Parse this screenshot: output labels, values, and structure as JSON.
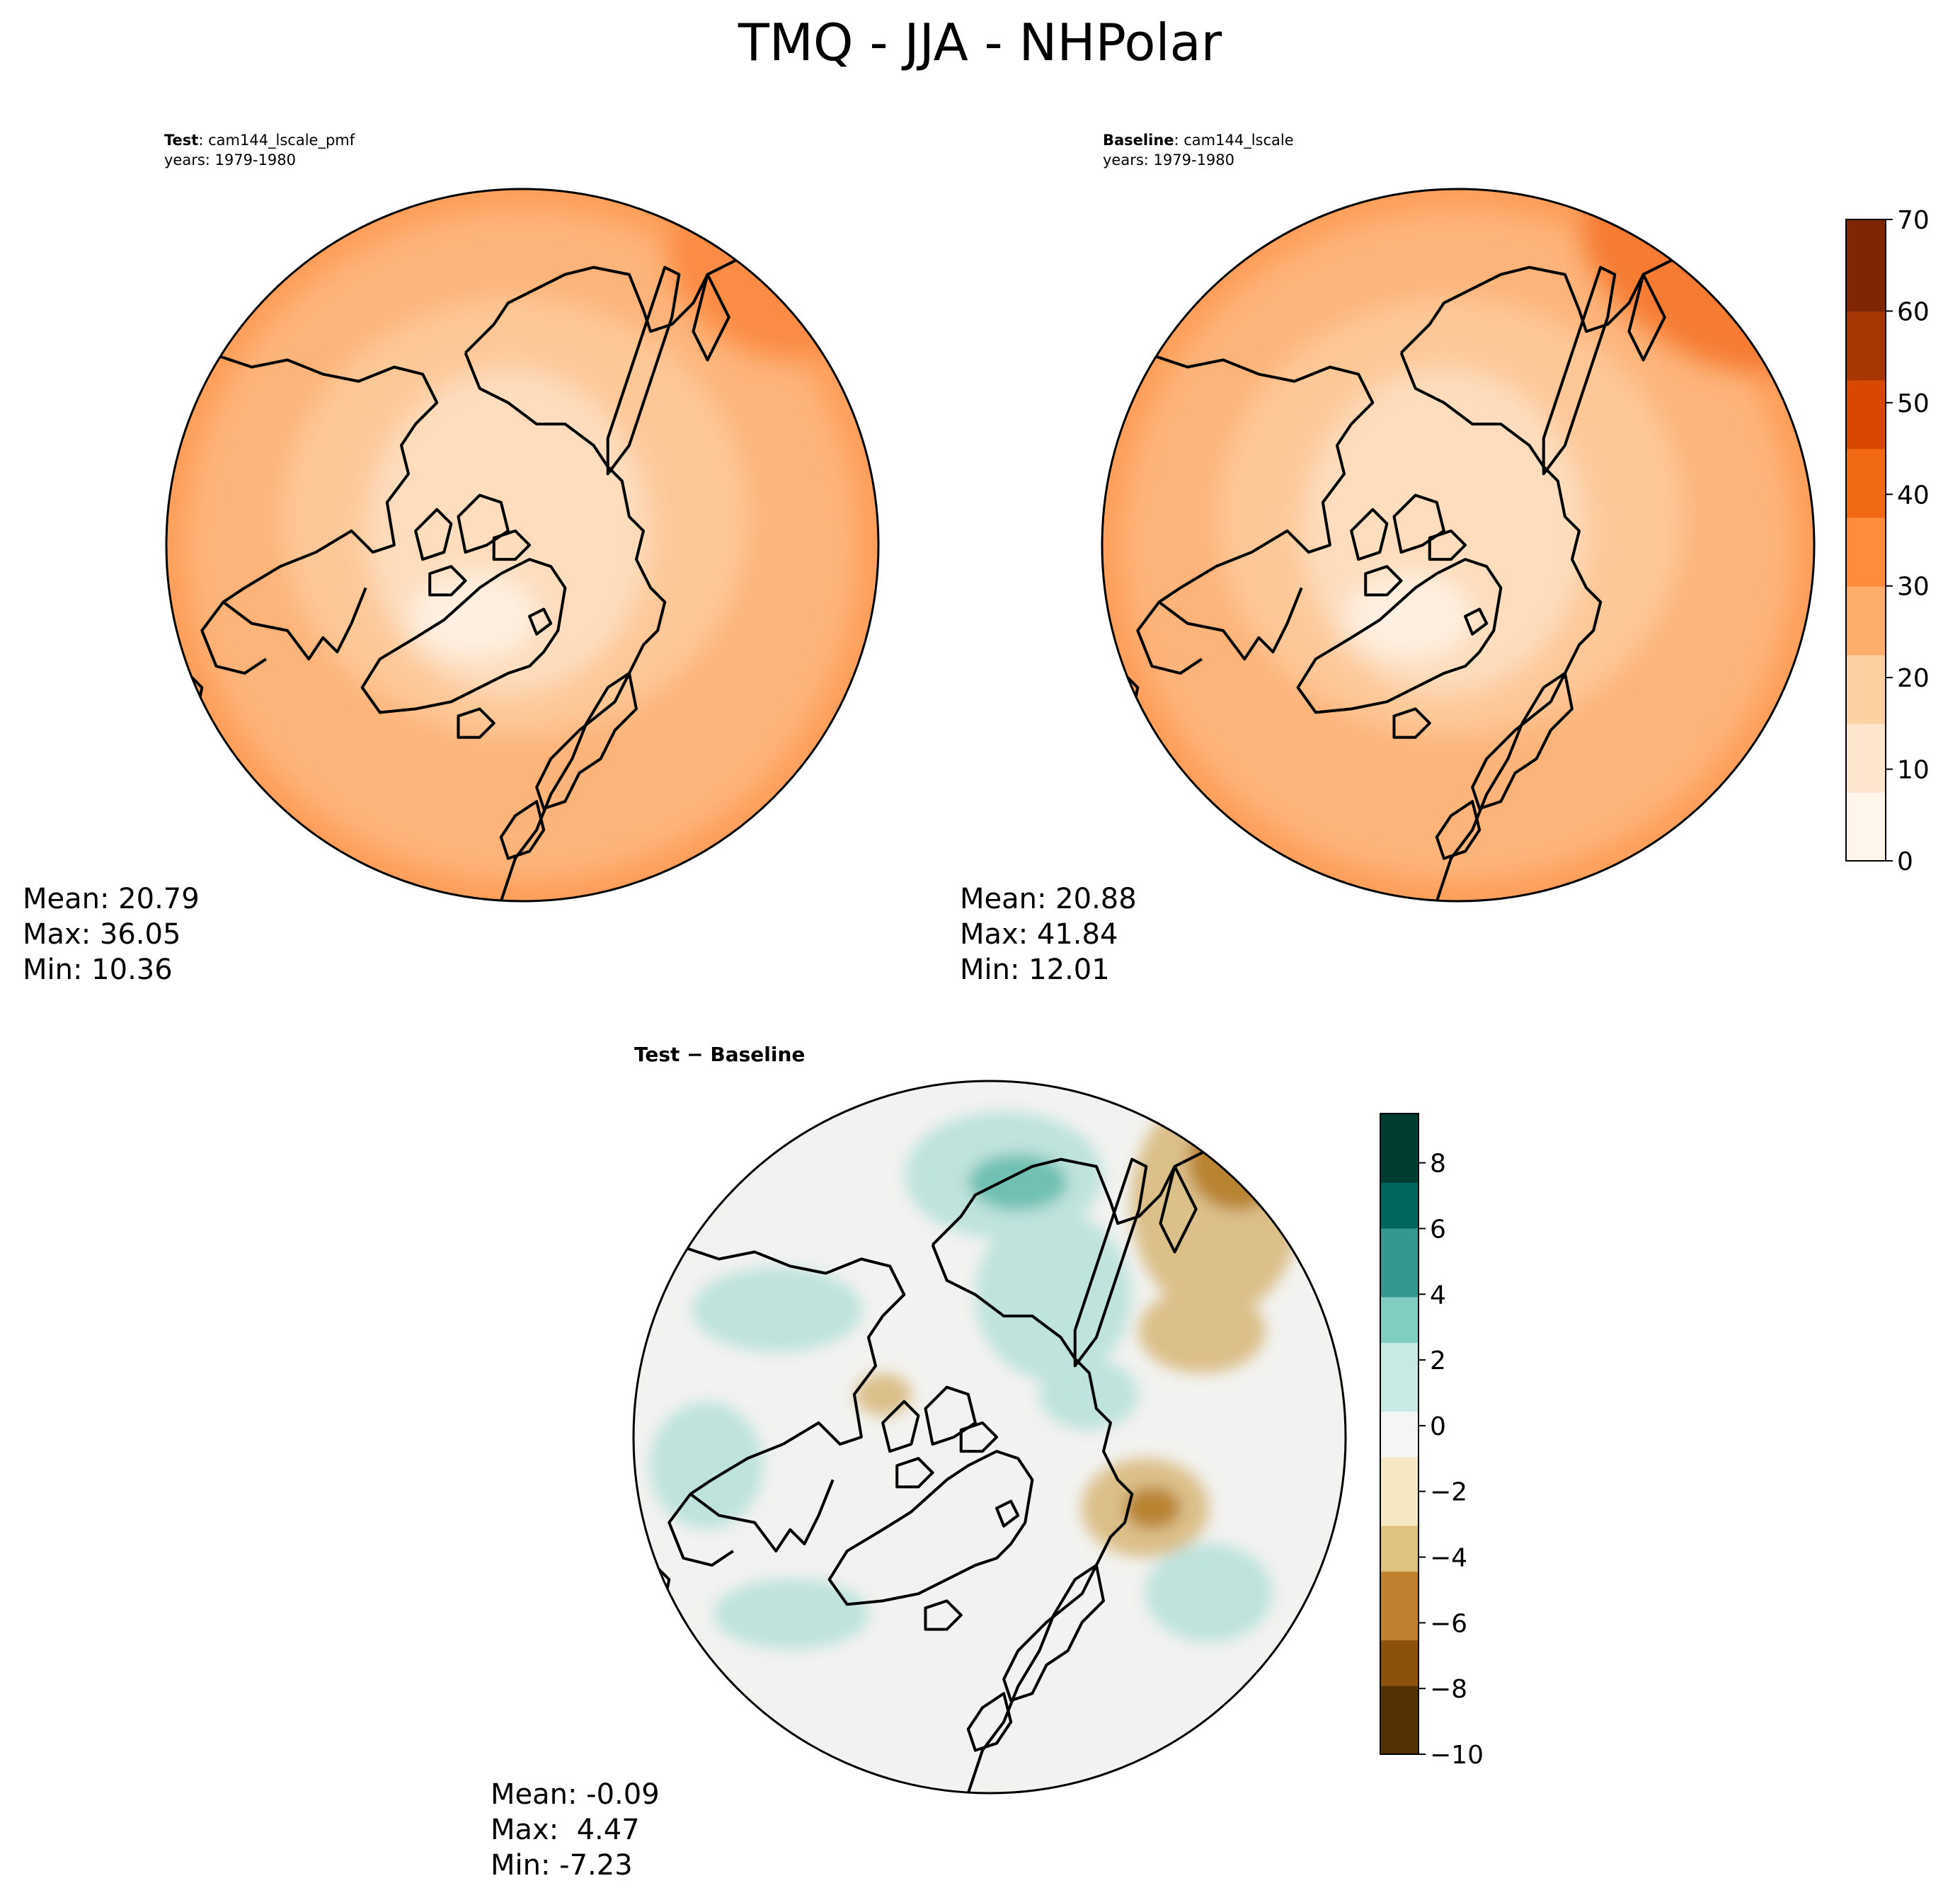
{
  "title": "TMQ - JJA - NHPolar",
  "panels": {
    "test": {
      "label_bold": "Test",
      "label_rest": ": cam144_lscale_pmf",
      "years": "years: 1979-1980",
      "mean": "Mean: 20.79",
      "max": "Max: 36.05",
      "min": "Min: 10.36"
    },
    "baseline": {
      "label_bold": "Baseline",
      "label_rest": ": cam144_lscale",
      "years": "years: 1979-1980",
      "mean": "Mean: 20.88",
      "max": "Max: 41.84",
      "min": "Min: 12.01"
    },
    "diff": {
      "label": "Test − Baseline",
      "mean": "Mean: -0.09",
      "max": "Max:  4.47",
      "min": "Min: -7.23"
    }
  },
  "colorbars": {
    "abs": {
      "ticks": [
        "0",
        "10",
        "20",
        "30",
        "40",
        "50",
        "60",
        "70"
      ],
      "colors": [
        "#fff5eb",
        "#fee6ce",
        "#fdd0a2",
        "#fdae6b",
        "#fd8d3c",
        "#f16913",
        "#d94801",
        "#a63603",
        "#7f2704"
      ]
    },
    "diff": {
      "ticks": [
        "−10",
        "−8",
        "−6",
        "−4",
        "−2",
        "0",
        "2",
        "4",
        "6",
        "8"
      ],
      "colors": [
        "#543005",
        "#8c510a",
        "#bf812d",
        "#dfc27d",
        "#f6e8c3",
        "#f5f5f5",
        "#c7eae5",
        "#80cdc1",
        "#35978f",
        "#01665e",
        "#003c30"
      ]
    }
  },
  "map_colors": {
    "test": {
      "base": "#fdb47a",
      "outer": "#fd9e5a",
      "mid": "#fdc898",
      "inner": "#fdddbd",
      "core": "#fef0e1",
      "hot": "#fb8c45"
    },
    "baseline": {
      "base": "#fdb47a",
      "outer": "#fd9e5a",
      "mid": "#fdc898",
      "inner": "#fdddbd",
      "core": "#fef0e1",
      "hot": "#f57b33"
    },
    "diff": {
      "base": "#f2f2f0",
      "teal": "#bfe3dd",
      "teal_dark": "#6fc0b3",
      "brown": "#dcc08a",
      "brown_dark": "#b98431"
    }
  }
}
